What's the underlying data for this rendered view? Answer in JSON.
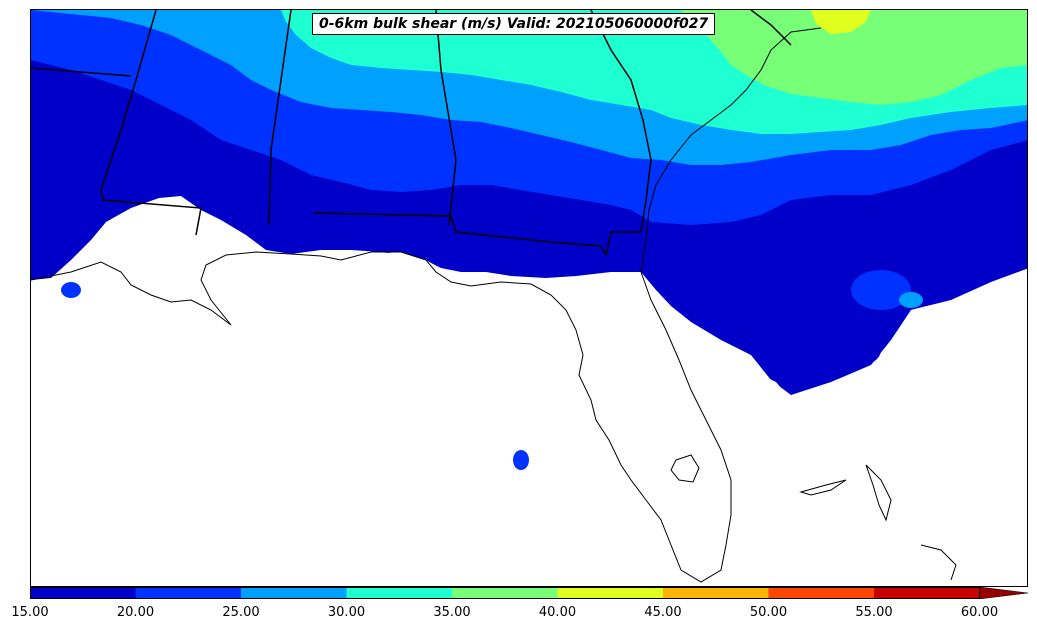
{
  "title": "0-6km bulk shear (m/s) Valid: 202105060000f027",
  "colorbar": {
    "ticks": [
      "15.00",
      "20.00",
      "25.00",
      "30.00",
      "35.00",
      "40.00",
      "45.00",
      "50.00",
      "55.00",
      "60.00"
    ],
    "colors": [
      "#0000c8",
      "#0032ff",
      "#00a0ff",
      "#1effd2",
      "#78ff78",
      "#e1ff1e",
      "#ffb400",
      "#ff4600",
      "#c80000"
    ],
    "extend_color": "#960000"
  },
  "map": {
    "shear_levels_m_s": [
      15,
      20,
      25,
      30,
      35,
      40
    ],
    "land_color": "#ffffff",
    "boundary_color": "#000000"
  }
}
